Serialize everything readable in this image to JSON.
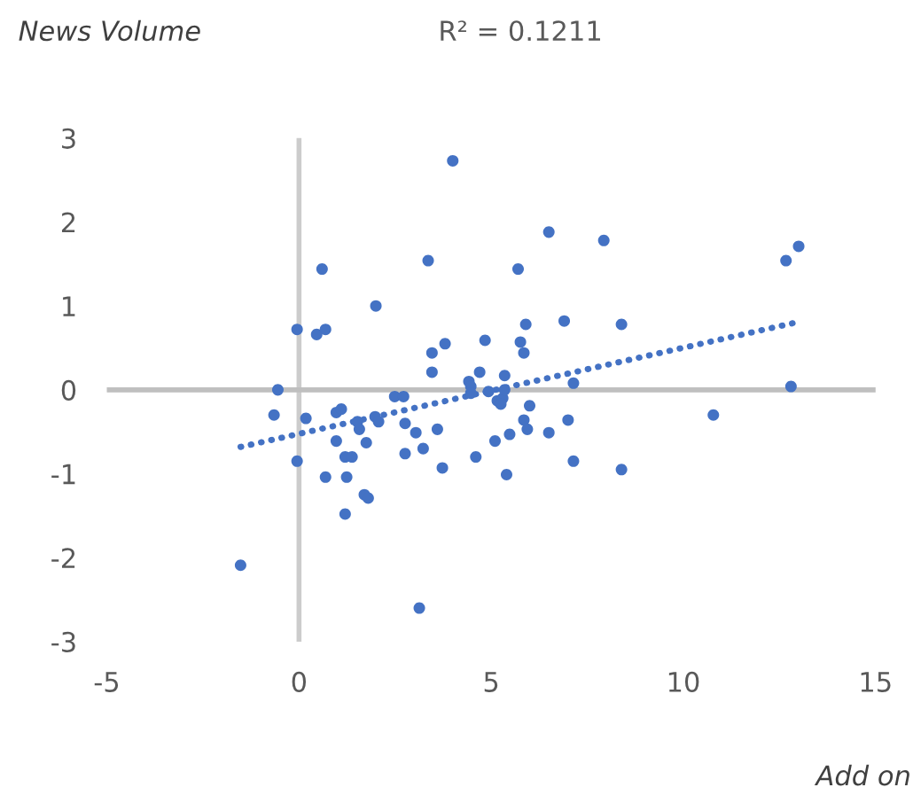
{
  "chart_data": {
    "type": "scatter",
    "xlabel": "Add on",
    "ylabel": "News Volume",
    "annotations": [
      "R² = 0.1211"
    ],
    "xlim": [
      -5,
      15
    ],
    "xticks": [
      -5,
      0,
      5,
      10,
      15
    ],
    "ylim": [
      -3,
      3
    ],
    "yticks": [
      -3,
      -2,
      -1,
      0,
      1,
      2,
      3
    ],
    "grid": false,
    "legend": false,
    "marker": "circle",
    "ref_lines": [
      {
        "axis": "x",
        "value": 0,
        "color": "#cccccc"
      },
      {
        "axis": "y",
        "value": 0,
        "color": "#bfbfbf"
      }
    ],
    "series": [
      {
        "color": "#4472c4",
        "x": [
          4.0,
          6.5,
          0.6,
          3.36,
          5.7,
          2.0,
          -0.05,
          0.46,
          0.69,
          5.9,
          6.9,
          3.46,
          3.8,
          4.84,
          5.76,
          5.85,
          3.46,
          4.7,
          5.35,
          4.42,
          4.47,
          -0.55,
          7.93,
          12.67,
          13.0,
          8.39,
          7.14,
          12.8,
          -0.65,
          0.18,
          -0.05,
          -1.52,
          3.13,
          0.97,
          1.1,
          0.97,
          0.69,
          1.24,
          1.2,
          1.38,
          1.2,
          1.52,
          1.57,
          1.75,
          1.7,
          1.8,
          1.98,
          2.07,
          2.49,
          2.72,
          2.76,
          3.04,
          2.76,
          3.23,
          3.6,
          3.73,
          4.47,
          4.93,
          5.16,
          5.3,
          5.25,
          5.35,
          6.0,
          5.85,
          5.94,
          5.1,
          5.48,
          6.5,
          4.6,
          5.4,
          7.0,
          7.14,
          8.39,
          10.78
        ],
        "values": [
          2.73,
          1.88,
          1.44,
          1.54,
          1.44,
          1.0,
          0.72,
          0.66,
          0.72,
          0.78,
          0.82,
          0.44,
          0.55,
          0.59,
          0.57,
          0.44,
          0.21,
          0.21,
          0.17,
          0.1,
          0.04,
          0.0,
          1.78,
          1.54,
          1.71,
          0.78,
          0.08,
          0.04,
          -0.3,
          -0.34,
          -0.85,
          -2.09,
          -2.6,
          -0.27,
          -0.23,
          -0.61,
          -1.04,
          -1.04,
          -0.8,
          -0.8,
          -1.48,
          -0.38,
          -0.47,
          -0.63,
          -1.25,
          -1.29,
          -0.32,
          -0.38,
          -0.08,
          -0.08,
          -0.4,
          -0.51,
          -0.76,
          -0.7,
          -0.47,
          -0.93,
          -0.04,
          -0.02,
          -0.13,
          -0.1,
          -0.17,
          0.0,
          -0.19,
          -0.36,
          -0.47,
          -0.61,
          -0.53,
          -0.51,
          -0.8,
          -1.01,
          -0.36,
          -0.85,
          -0.95,
          -0.3
        ]
      },
      {
        "type": "line",
        "color": "#4472c4",
        "line_style": "dotted",
        "marker": "none",
        "x": [
          -1.52,
          13.0
        ],
        "values": [
          -0.68,
          0.81
        ]
      }
    ]
  }
}
